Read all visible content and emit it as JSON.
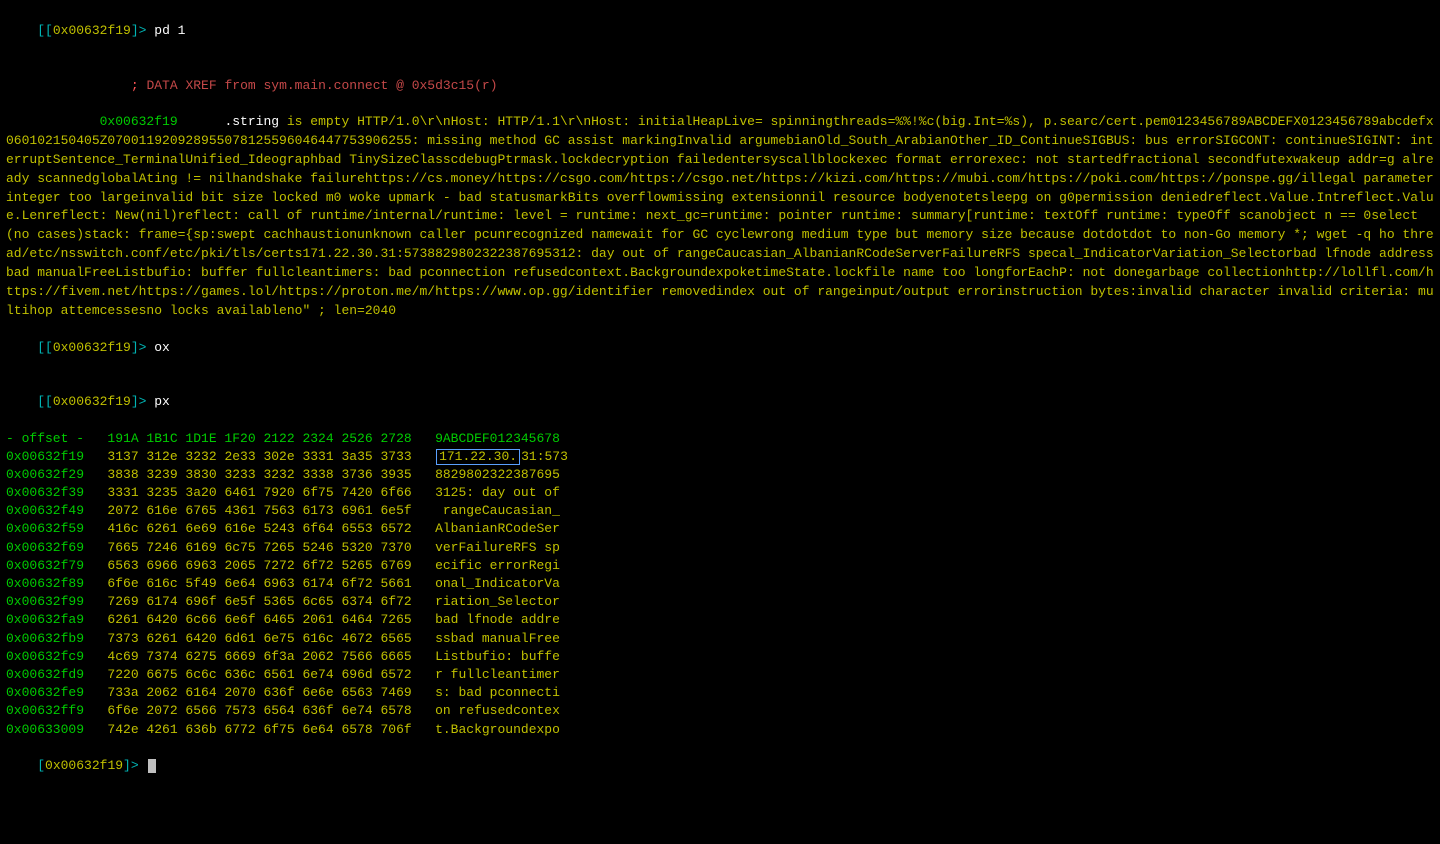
{
  "prompts": {
    "open": "[",
    "close": "]>",
    "addr": "0x00632f19",
    "cmd1": "pd 1",
    "cmd2": "ox",
    "cmd3": "px",
    "cmd4": ""
  },
  "xref_line": {
    "indent": "            ",
    "semicolon": "; ",
    "text": "DATA XREF from sym.main.connect @ 0x5d3c15(r)"
  },
  "string_line": {
    "indent": "            ",
    "addr": "0x00632f19",
    "gap": "      ",
    "dotstring": ".string",
    "space": " ",
    "quote": "\"",
    "content": "is empty HTTP/1.0\\r\\nHost:  HTTP/1.1\\r\\nHost:  initialHeapLive= spinningthreads=%%!%c(big.Int=%s), p.searc/cert.pem0123456789ABCDEFX0123456789abcdefx060102150405Z070011920928955078125596046447753906255: missing method GC assist markingInvalid argumebianOld_South_ArabianOther_ID_ContinueSIGBUS: bus errorSIGCONT: continueSIGINT: interruptSentence_TerminalUnified_Ideographbad TinySizeClasscdebugPtrmask.lockdecryption failedentersyscallblockexec format errorexec: not startedfractional secondfutexwakeup addr=g already scannedglobalAting != nilhandshake failurehttps://cs.money/https://csgo.com/https://csgo.net/https://kizi.com/https://mubi.com/https://poki.com/https://ponspe.gg/illegal parameterinteger too largeinvalid bit size locked m0 woke upmark - bad statusmarkBits overflowmissing extensionnil resource bodyenotetsleepg on g0permission deniedreflect.Value.Intreflect.Value.Lenreflect: New(nil)reflect: call of runtime/internal/runtime: level = runtime: next_gc=runtime: pointer runtime: summary[runtime: textOff runtime: typeOff scanobject n == 0select (no cases)stack: frame={sp:swept cachhaustionunknown caller pcunrecognized namewait for GC cyclewrong medium type  but memory size  because dotdotdot to non-Go memory *; wget -q ho thread/etc/nsswitch.conf/etc/pki/tls/certs171.22.30.31:5738829802322387695312: day out of rangeCaucasian_AlbanianRCodeServerFailureRFS specal_IndicatorVariation_Selectorbad lfnode addressbad manualFreeListbufio: buffer fullcleantimers: bad pconnection refusedcontext.BackgroundexpoketimeState.lockfile name too longforEachP: not donegarbage collectionhttp://lollfl.com/https://fivem.net/https://games.lol/https://proton.me/m/https://www.op.gg/identifier removedindex out of rangeinput/output errorinstruction bytes:invalid character invalid criteria: multihop attemcessesno locks availableno\" ; len=2040"
  },
  "hexdump": {
    "header": "- offset -   191A 1B1C 1D1E 1F20 2122 2324 2526 2728   9ABCDEF012345678",
    "highlight_text": "171.22.30.",
    "rows": [
      {
        "o": "0x00632f19",
        "h": "3137 312e 3232 2e33 302e 3331 3a35 3733",
        "a_pre": "",
        "a_hi": "171.22.30.",
        "a_post": "31:573"
      },
      {
        "o": "0x00632f29",
        "h": "3838 3239 3830 3233 3232 3338 3736 3935",
        "a": "8829802322387695"
      },
      {
        "o": "0x00632f39",
        "h": "3331 3235 3a20 6461 7920 6f75 7420 6f66",
        "a": "3125: day out of"
      },
      {
        "o": "0x00632f49",
        "h": "2072 616e 6765 4361 7563 6173 6961 6e5f",
        "a": " rangeCaucasian_"
      },
      {
        "o": "0x00632f59",
        "h": "416c 6261 6e69 616e 5243 6f64 6553 6572",
        "a": "AlbanianRCodeSer"
      },
      {
        "o": "0x00632f69",
        "h": "7665 7246 6169 6c75 7265 5246 5320 7370",
        "a": "verFailureRFS sp"
      },
      {
        "o": "0x00632f79",
        "h": "6563 6966 6963 2065 7272 6f72 5265 6769",
        "a": "ecific errorRegi"
      },
      {
        "o": "0x00632f89",
        "h": "6f6e 616c 5f49 6e64 6963 6174 6f72 5661",
        "a": "onal_IndicatorVa"
      },
      {
        "o": "0x00632f99",
        "h": "7269 6174 696f 6e5f 5365 6c65 6374 6f72",
        "a": "riation_Selector"
      },
      {
        "o": "0x00632fa9",
        "h": "6261 6420 6c66 6e6f 6465 2061 6464 7265",
        "a": "bad lfnode addre"
      },
      {
        "o": "0x00632fb9",
        "h": "7373 6261 6420 6d61 6e75 616c 4672 6565",
        "a": "ssbad manualFree"
      },
      {
        "o": "0x00632fc9",
        "h": "4c69 7374 6275 6669 6f3a 2062 7566 6665",
        "a": "Listbufio: buffe"
      },
      {
        "o": "0x00632fd9",
        "h": "7220 6675 6c6c 636c 6561 6e74 696d 6572",
        "a": "r fullcleantimer"
      },
      {
        "o": "0x00632fe9",
        "h": "733a 2062 6164 2070 636f 6e6e 6563 7469",
        "a": "s: bad pconnecti"
      },
      {
        "o": "0x00632ff9",
        "h": "6f6e 2072 6566 7573 6564 636f 6e74 6578",
        "a": "on refusedcontex"
      },
      {
        "o": "0x00633009",
        "h": "742e 4261 636b 6772 6f75 6e64 6578 706f",
        "a": "t.Backgroundexpo"
      }
    ]
  },
  "colors": {
    "bg": "#000000",
    "teal": "#00b5b5",
    "yellow": "#c0c000",
    "green": "#00cc00",
    "red": "#c44848",
    "bright_red": "#ff5555",
    "white": "#ffffff",
    "highlight_border": "#5aa0ff",
    "cursor": "#c0c0c0"
  }
}
